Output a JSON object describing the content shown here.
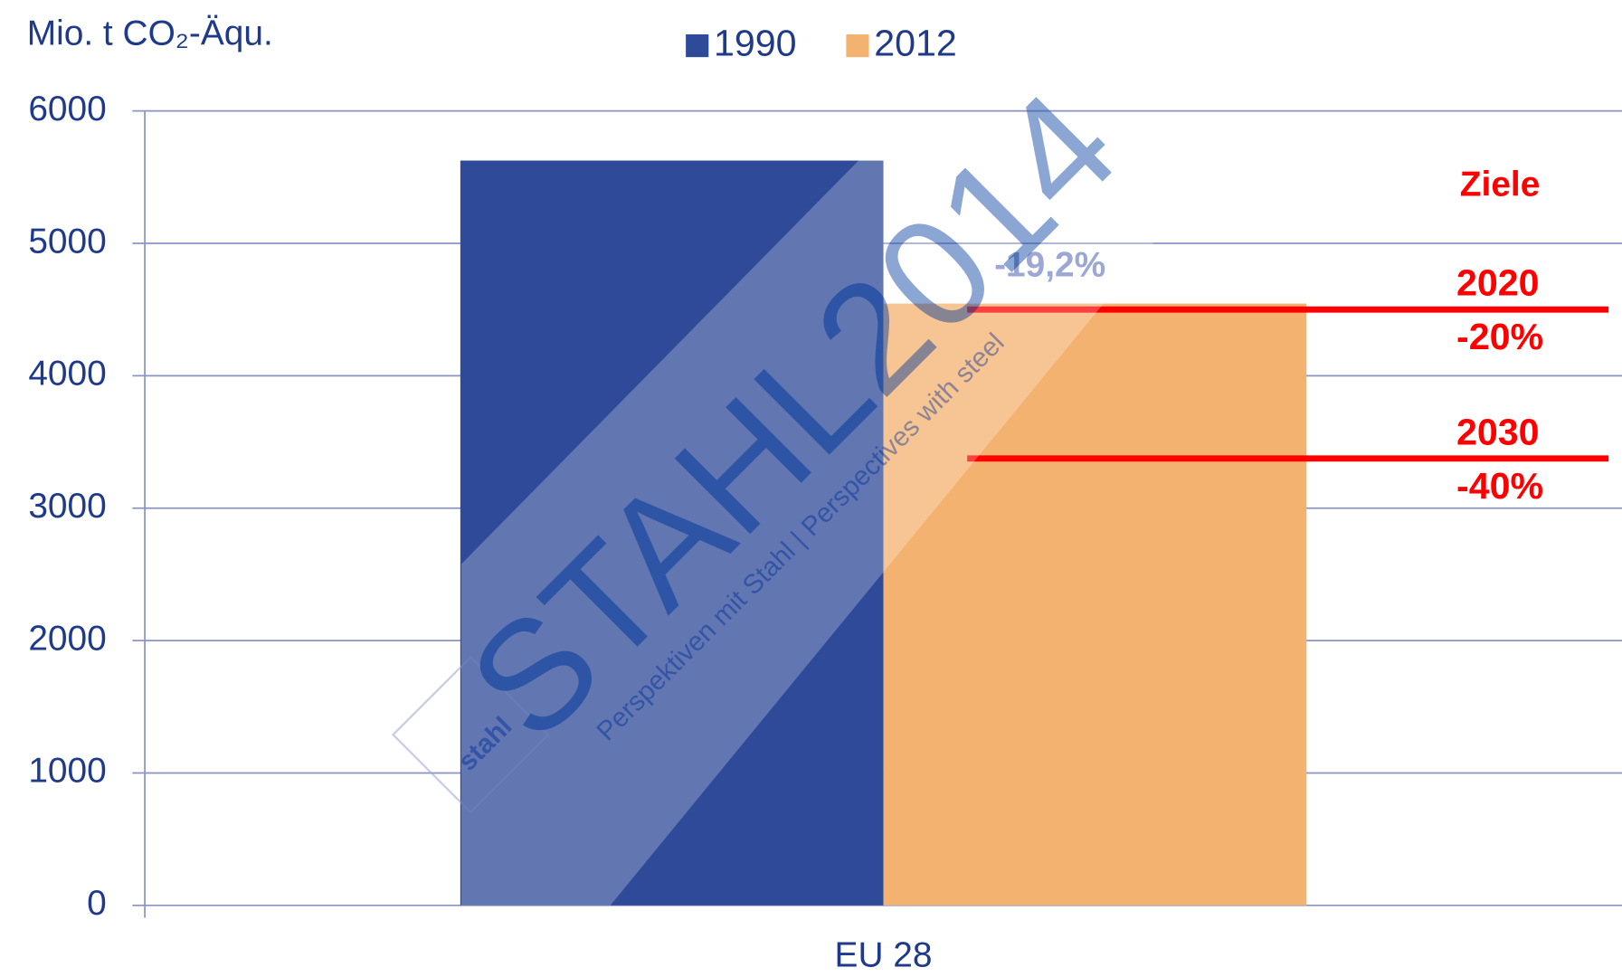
{
  "chart_data": {
    "type": "bar",
    "y_axis_label": "Mio. t CO₂-Äqu.",
    "categories": [
      "EU 28"
    ],
    "series": [
      {
        "name": "1990",
        "color": "#2e4a99",
        "values": [
          5625
        ]
      },
      {
        "name": "2012",
        "color": "#f4b271",
        "values": [
          4545
        ]
      }
    ],
    "change_label": "-19,2%",
    "targets_title": "Ziele",
    "targets": [
      {
        "year": "2020",
        "change": "-20%",
        "value": 4500,
        "color": "#ff0000"
      },
      {
        "year": "2030",
        "change": "-40%",
        "value": 3375,
        "color": "#ff0000"
      }
    ],
    "ylim": [
      0,
      6000
    ],
    "yticks": [
      0,
      1000,
      2000,
      3000,
      4000,
      5000,
      6000
    ],
    "grid": true,
    "legend": "top"
  },
  "watermark": {
    "title": "STAHL2014",
    "subtitle": "Perspektiven mit Stahl | Perspectives with steel",
    "logo": "stahl"
  }
}
